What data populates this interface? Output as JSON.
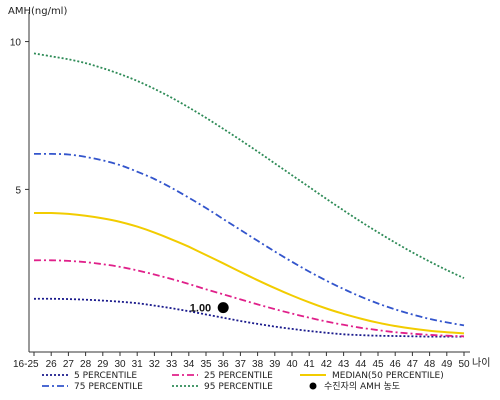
{
  "chart_data": {
    "type": "line",
    "ylabel": "AMH(ng/ml)",
    "xlabel": "나이",
    "x": [
      "16-25",
      "26",
      "27",
      "28",
      "29",
      "30",
      "31",
      "32",
      "33",
      "34",
      "35",
      "36",
      "37",
      "38",
      "39",
      "40",
      "41",
      "42",
      "43",
      "44",
      "45",
      "46",
      "47",
      "48",
      "49",
      "50"
    ],
    "ylim": [
      -0.5,
      11
    ],
    "yticks": [
      5,
      10
    ],
    "series": [
      {
        "name": "5 PERCENTILE",
        "color": "#1a1a8c",
        "style": "dotted",
        "values": [
          1.3,
          1.3,
          1.29,
          1.27,
          1.24,
          1.2,
          1.15,
          1.07,
          0.98,
          0.88,
          0.77,
          0.66,
          0.55,
          0.45,
          0.36,
          0.28,
          0.21,
          0.15,
          0.1,
          0.07,
          0.05,
          0.04,
          0.03,
          0.02,
          0.02,
          0.02
        ]
      },
      {
        "name": "25 PERCENTILE",
        "color": "#e0208a",
        "style": "dashdot",
        "values": [
          2.6,
          2.6,
          2.58,
          2.54,
          2.47,
          2.38,
          2.26,
          2.12,
          1.97,
          1.8,
          1.62,
          1.45,
          1.28,
          1.11,
          0.95,
          0.8,
          0.66,
          0.53,
          0.42,
          0.32,
          0.24,
          0.17,
          0.12,
          0.08,
          0.05,
          0.03
        ]
      },
      {
        "name": "MEDIAN(50 PERCENTILE)",
        "color": "#f2cc00",
        "style": "solid",
        "values": [
          4.2,
          4.2,
          4.17,
          4.11,
          4.02,
          3.9,
          3.74,
          3.54,
          3.31,
          3.06,
          2.78,
          2.5,
          2.21,
          1.93,
          1.66,
          1.41,
          1.18,
          0.97,
          0.79,
          0.63,
          0.49,
          0.38,
          0.29,
          0.22,
          0.17,
          0.13
        ]
      },
      {
        "name": "75 PERCENTILE",
        "color": "#3355cc",
        "style": "dashdot",
        "values": [
          6.2,
          6.2,
          6.18,
          6.1,
          5.98,
          5.82,
          5.6,
          5.35,
          5.05,
          4.72,
          4.37,
          4.0,
          3.63,
          3.26,
          2.9,
          2.55,
          2.22,
          1.91,
          1.63,
          1.37,
          1.14,
          0.94,
          0.77,
          0.62,
          0.5,
          0.4
        ]
      },
      {
        "name": "95 PERCENTILE",
        "color": "#2e8b57",
        "style": "dotted",
        "values": [
          9.6,
          9.5,
          9.4,
          9.27,
          9.1,
          8.9,
          8.67,
          8.4,
          8.1,
          7.77,
          7.42,
          7.05,
          6.67,
          6.28,
          5.88,
          5.48,
          5.08,
          4.68,
          4.29,
          3.91,
          3.55,
          3.2,
          2.87,
          2.56,
          2.27,
          2.0
        ]
      }
    ],
    "marker": {
      "legend_label": "수진자의 AMH 농도",
      "x": "36",
      "y": 1.0,
      "label": "1.00",
      "color": "#000000"
    }
  }
}
